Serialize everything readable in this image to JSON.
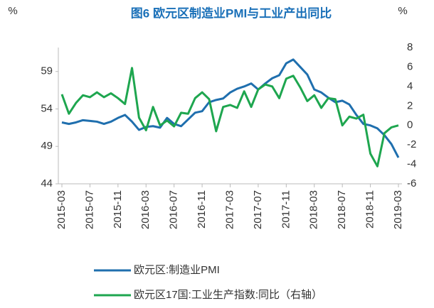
{
  "chart_data": {
    "type": "line",
    "title": "图6 欧元区制造业PMI与工业产出同比",
    "y_unit": "%",
    "y2_unit": "%",
    "categories": [
      "2015-03",
      null,
      null,
      null,
      "2015-07",
      null,
      null,
      null,
      "2015-11",
      null,
      null,
      null,
      "2016-03",
      null,
      null,
      null,
      "2016-07",
      null,
      null,
      null,
      "2016-11",
      null,
      null,
      null,
      "2017-03",
      null,
      null,
      null,
      "2017-07",
      null,
      null,
      null,
      "2017-11",
      null,
      null,
      null,
      "2018-03",
      null,
      null,
      null,
      "2018-07",
      null,
      null,
      null,
      "2018-11",
      null,
      null,
      null,
      "2019-03"
    ],
    "series": [
      {
        "name": "欧元区:制造业PMI",
        "color": "#1f6fae",
        "axis": "y",
        "values": [
          52.2,
          52.0,
          52.2,
          52.5,
          52.4,
          52.3,
          52.0,
          52.3,
          52.8,
          53.2,
          52.3,
          51.2,
          51.6,
          51.7,
          51.5,
          52.8,
          52.0,
          51.7,
          52.6,
          53.5,
          53.7,
          54.9,
          55.2,
          55.4,
          56.2,
          56.7,
          57.0,
          57.4,
          56.6,
          57.4,
          58.1,
          58.5,
          60.1,
          60.6,
          59.6,
          58.6,
          56.6,
          56.2,
          55.5,
          54.9,
          55.1,
          54.6,
          53.2,
          52.0,
          51.8,
          51.4,
          50.5,
          49.3,
          47.5
        ]
      },
      {
        "name": "欧元区17国:工业生产指数:同比（右轴）",
        "color": "#1ea64f",
        "axis": "y2",
        "values": [
          3.2,
          1.2,
          2.3,
          3.1,
          2.9,
          3.4,
          2.9,
          3.3,
          2.8,
          2.2,
          5.9,
          0.8,
          -0.5,
          1.9,
          0.0,
          0.5,
          -0.1,
          1.3,
          1.2,
          2.8,
          3.4,
          2.7,
          -0.6,
          1.9,
          2.1,
          1.8,
          3.5,
          1.9,
          3.7,
          4.2,
          4.0,
          2.8,
          4.8,
          5.1,
          3.9,
          2.5,
          3.1,
          1.8,
          2.8,
          2.7,
          0.0,
          0.9,
          0.7,
          1.1,
          -2.9,
          -4.2,
          -0.8,
          -0.2,
          0.0
        ]
      }
    ],
    "ylim": [
      44,
      62.2
    ],
    "yticks": [
      44,
      49,
      54,
      59
    ],
    "y2lim": [
      -6,
      8
    ],
    "y2ticks": [
      -6,
      -4,
      -2,
      0,
      2,
      4,
      6,
      8
    ]
  }
}
